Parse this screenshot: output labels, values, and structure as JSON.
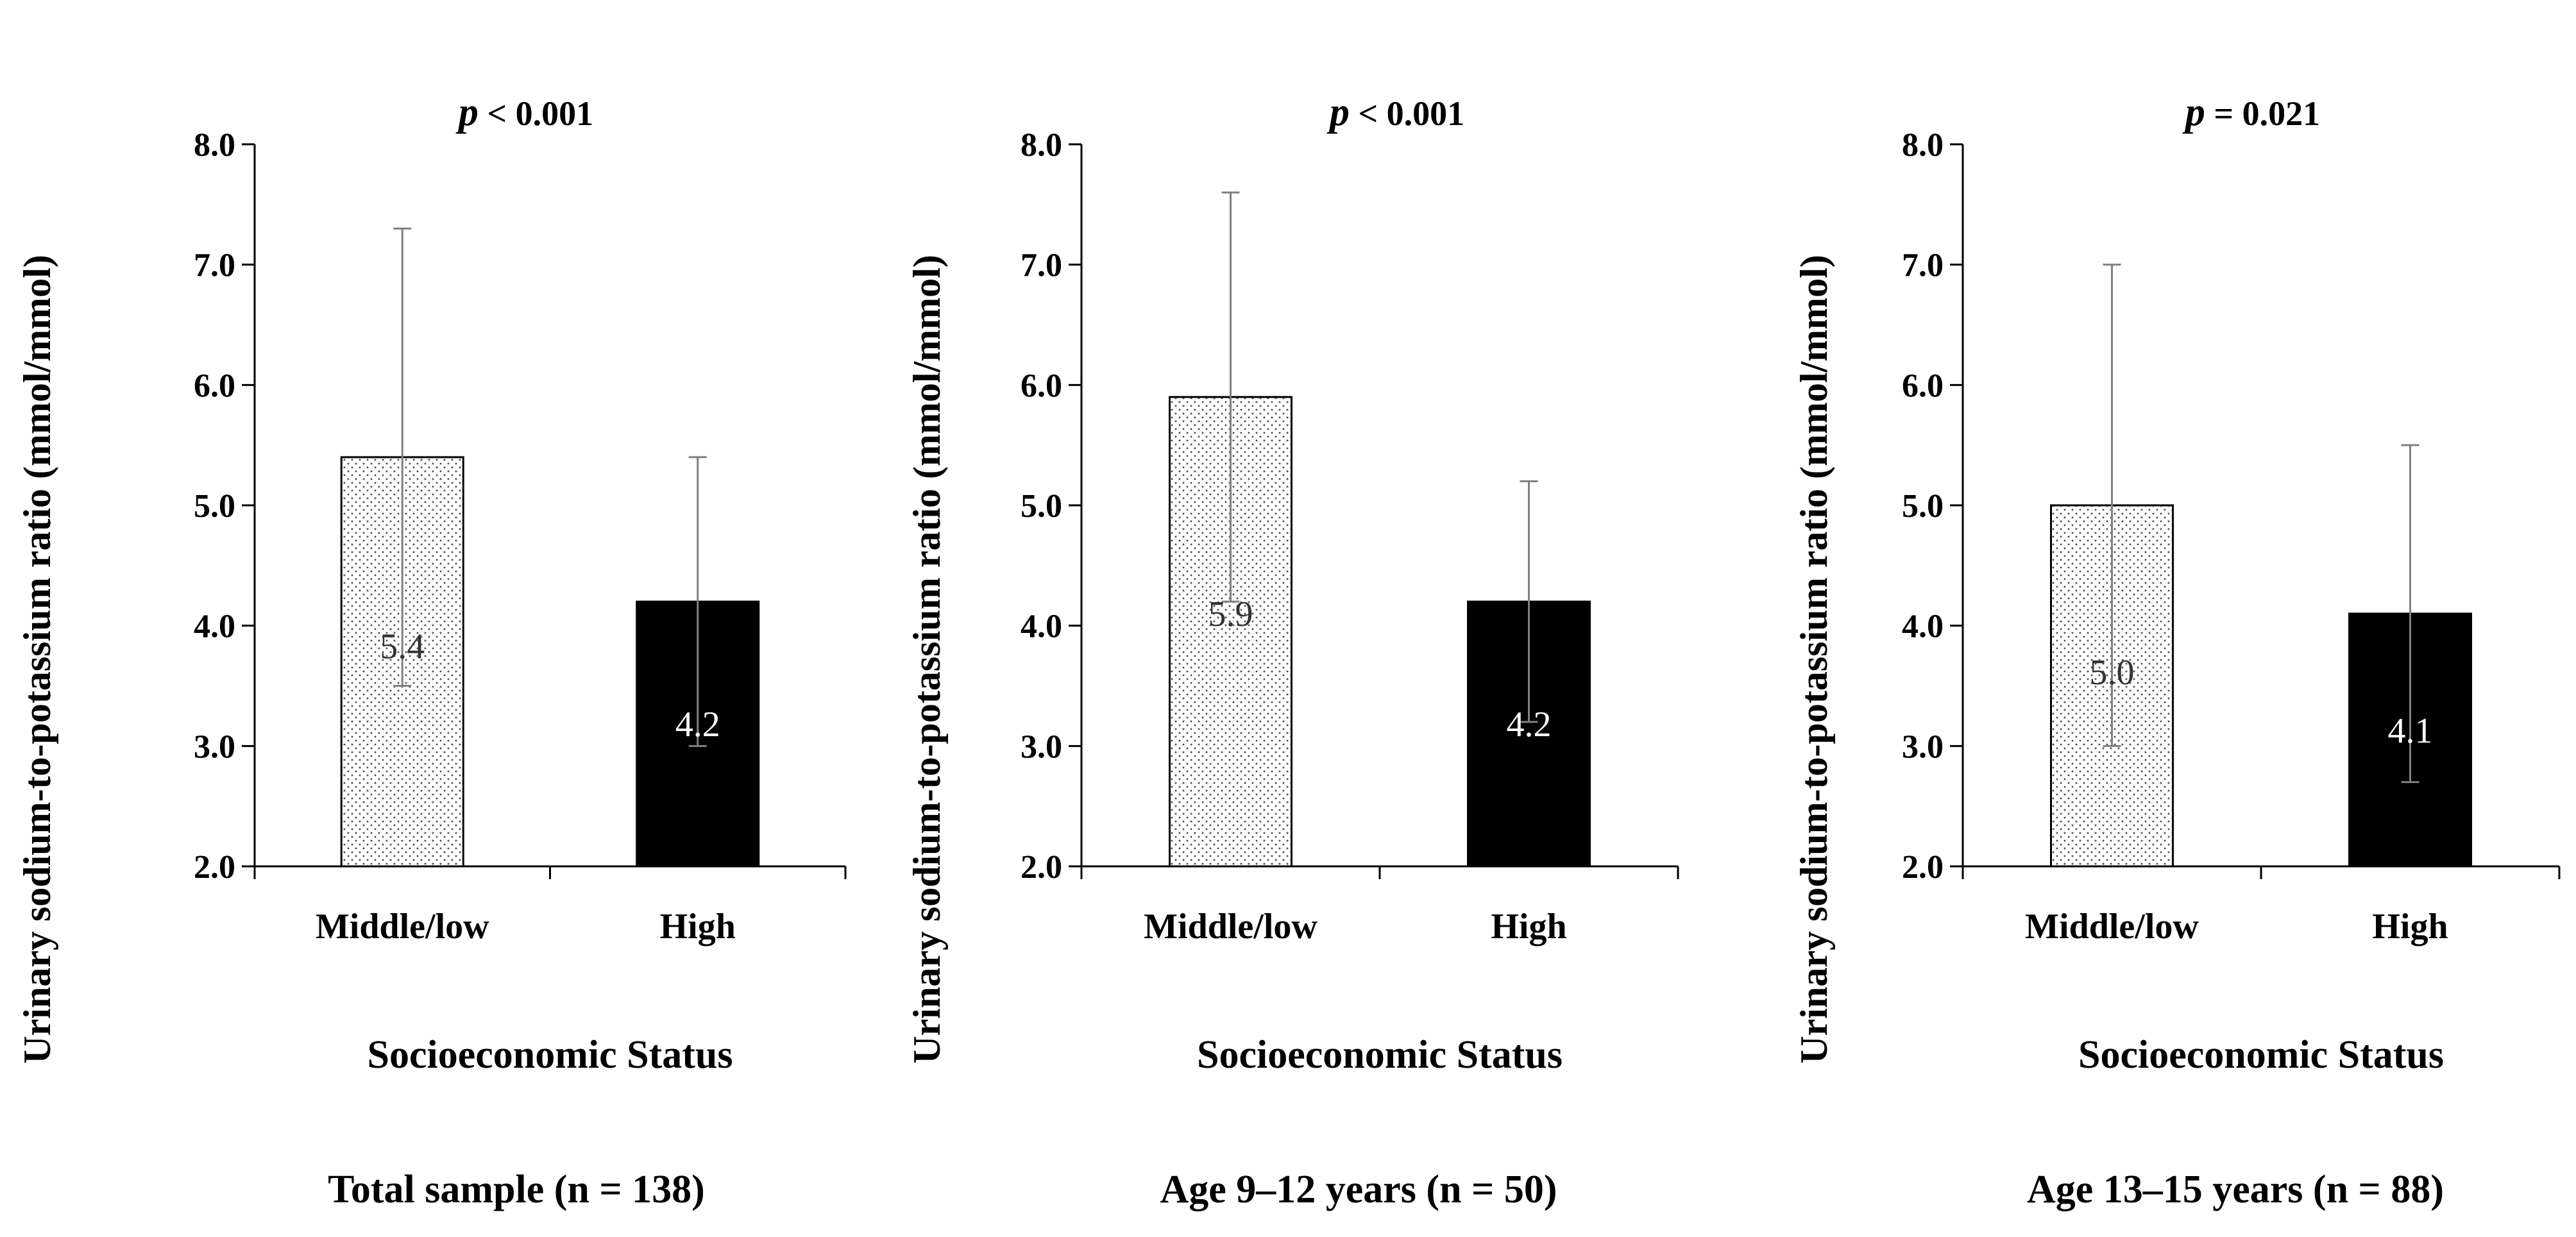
{
  "chart_data": [
    {
      "type": "bar",
      "title": "Total sample (n = 138)",
      "p_prefix": "p",
      "p_text": " < 0.001",
      "xlabel": "Socioeconomic  Status",
      "ylabel": "Urinary sodium-to-potassium ratio (mmol/mmol)",
      "ylim": [
        2.0,
        8.0
      ],
      "yticks": [
        "2.0",
        "3.0",
        "4.0",
        "5.0",
        "6.0",
        "7.0",
        "8.0"
      ],
      "categories": [
        "Middle/low",
        "High"
      ],
      "values": [
        5.4,
        4.2
      ],
      "value_labels": [
        "5.4",
        "4.2"
      ],
      "error_low": [
        3.5,
        3.0
      ],
      "error_high": [
        7.3,
        5.4
      ],
      "fills": [
        "dotted",
        "#000000"
      ]
    },
    {
      "type": "bar",
      "title": "Age 9–12 years (n = 50)",
      "p_prefix": "p",
      "p_text": " < 0.001",
      "xlabel": "Socioeconomic  Status",
      "ylabel": "Urinary sodium-to-potassium ratio (mmol/mmol)",
      "ylim": [
        2.0,
        8.0
      ],
      "yticks": [
        "2.0",
        "3.0",
        "4.0",
        "5.0",
        "6.0",
        "7.0",
        "8.0"
      ],
      "categories": [
        "Middle/low",
        "High"
      ],
      "values": [
        5.9,
        4.2
      ],
      "value_labels": [
        "5.9",
        "4.2"
      ],
      "error_low": [
        4.2,
        3.2
      ],
      "error_high": [
        7.6,
        5.2
      ],
      "fills": [
        "dotted",
        "#000000"
      ]
    },
    {
      "type": "bar",
      "title": "Age 13–15 years (n = 88)",
      "p_prefix": "p",
      "p_text": " = 0.021",
      "xlabel": "Socioeconomic  Status",
      "ylabel": "Urinary sodium-to-potassium ratio (mmol/mmol)",
      "ylim": [
        2.0,
        8.0
      ],
      "yticks": [
        "2.0",
        "3.0",
        "4.0",
        "5.0",
        "6.0",
        "7.0",
        "8.0"
      ],
      "categories": [
        "Middle/low",
        "High"
      ],
      "values": [
        5.0,
        4.1
      ],
      "value_labels": [
        "5.0",
        "4.1"
      ],
      "error_low": [
        3.0,
        2.7
      ],
      "error_high": [
        7.0,
        5.5
      ],
      "fills": [
        "dotted",
        "#000000"
      ]
    }
  ]
}
